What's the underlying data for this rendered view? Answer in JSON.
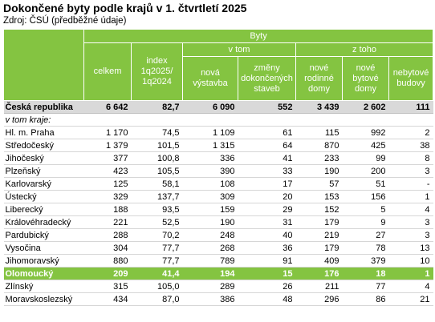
{
  "title": "Dokončené byty podle krajů v 1. čtvrtletí 2025",
  "source": "Zdroj: ČSÚ (předběžné údaje)",
  "colors": {
    "header_green": "#84c441",
    "total_row_gray": "#d9d9d9",
    "highlight_row_green": "#84c441"
  },
  "header": {
    "group_byty": "Byty",
    "group_v_tom": "v tom",
    "group_z_toho": "z toho",
    "col_celkem": "celkem",
    "col_index": "index 1q2025/ 1q2024",
    "col_nova": "nová výstavba",
    "col_zmeny": "změny dokončených staveb",
    "col_rodinne": "nové rodinné domy",
    "col_bytove": "nové bytové domy",
    "col_nebytove": "nebytové budovy"
  },
  "total": {
    "name": "Česká republika",
    "values": [
      "6 642",
      "82,7",
      "6 090",
      "552",
      "3 439",
      "2 602",
      "111"
    ]
  },
  "subheading": "v tom kraje:",
  "rows": [
    {
      "name": "Hl. m. Praha",
      "values": [
        "1 170",
        "74,5",
        "1 109",
        "61",
        "115",
        "992",
        "2"
      ]
    },
    {
      "name": "Středočeský",
      "values": [
        "1 379",
        "101,5",
        "1 315",
        "64",
        "870",
        "425",
        "38"
      ]
    },
    {
      "name": "Jihočeský",
      "values": [
        "377",
        "100,8",
        "336",
        "41",
        "233",
        "99",
        "8"
      ]
    },
    {
      "name": "Plzeňský",
      "values": [
        "423",
        "105,5",
        "390",
        "33",
        "190",
        "200",
        "3"
      ]
    },
    {
      "name": "Karlovarský",
      "values": [
        "125",
        "58,1",
        "108",
        "17",
        "57",
        "51",
        "-"
      ]
    },
    {
      "name": "Ústecký",
      "values": [
        "329",
        "137,7",
        "309",
        "20",
        "153",
        "156",
        "1"
      ]
    },
    {
      "name": "Liberecký",
      "values": [
        "188",
        "93,5",
        "159",
        "29",
        "152",
        "5",
        "4"
      ]
    },
    {
      "name": "Královéhradecký",
      "values": [
        "221",
        "52,5",
        "190",
        "31",
        "179",
        "9",
        "3"
      ]
    },
    {
      "name": "Pardubický",
      "values": [
        "288",
        "70,2",
        "248",
        "40",
        "219",
        "27",
        "3"
      ]
    },
    {
      "name": "Vysočina",
      "values": [
        "304",
        "77,7",
        "268",
        "36",
        "179",
        "78",
        "13"
      ]
    },
    {
      "name": "Jihomoravský",
      "values": [
        "880",
        "77,7",
        "789",
        "91",
        "409",
        "379",
        "10"
      ]
    },
    {
      "name": "Olomoucký",
      "values": [
        "209",
        "41,4",
        "194",
        "15",
        "176",
        "18",
        "1"
      ],
      "highlight": true
    },
    {
      "name": "Zlínský",
      "values": [
        "315",
        "105,0",
        "289",
        "26",
        "211",
        "77",
        "4"
      ]
    },
    {
      "name": "Moravskoslezský",
      "values": [
        "434",
        "87,0",
        "386",
        "48",
        "296",
        "86",
        "21"
      ]
    }
  ]
}
